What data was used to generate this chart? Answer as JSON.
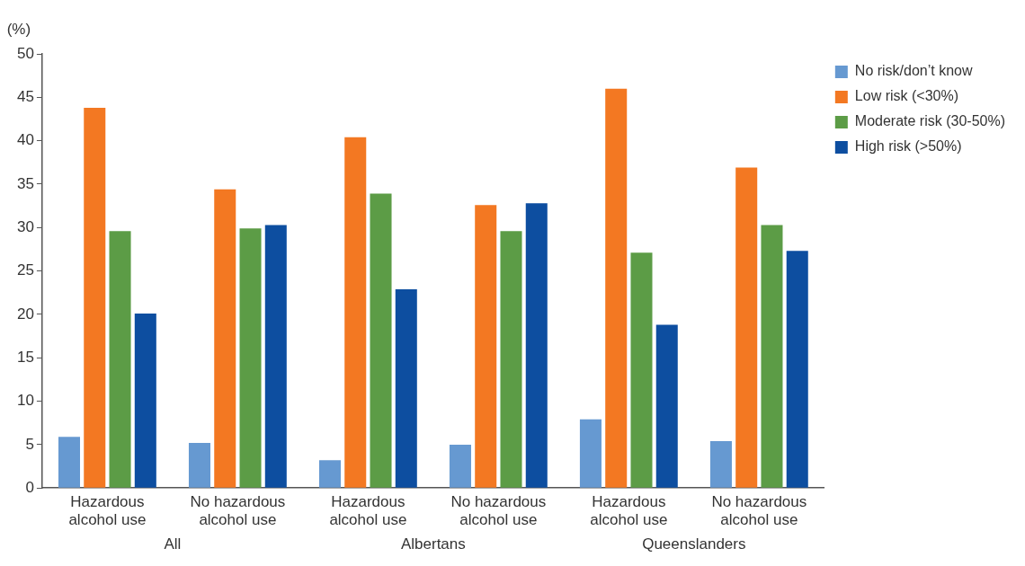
{
  "chart_data": {
    "type": "bar",
    "ylabel": "(%)",
    "categories": [
      "Hazardous alcohol use",
      "No hazardous alcohol use",
      "Hazardous alcohol use",
      "No hazardous alcohol use",
      "Hazardous alcohol use",
      "No hazardous alcohol use"
    ],
    "series": [
      {
        "name": "No risk/don’t know",
        "color": "#6699d1",
        "values": [
          5.9,
          5.2,
          3.2,
          5.0,
          7.9,
          5.4
        ]
      },
      {
        "name": "Low risk (<30%)",
        "color": "#f37822",
        "values": [
          43.8,
          34.4,
          40.4,
          32.6,
          46.0,
          36.9
        ]
      },
      {
        "name": "Moderate risk (30-50%)",
        "color": "#5c9c46",
        "values": [
          29.6,
          29.9,
          33.9,
          29.6,
          27.1,
          30.3
        ]
      },
      {
        "name": "High risk (>50%)",
        "color": "#0d4ea0",
        "values": [
          20.1,
          30.3,
          22.9,
          32.8,
          18.8,
          27.3
        ]
      }
    ],
    "annotations": [
      "All",
      "Albertans",
      "Queenslanders"
    ],
    "ylim": [
      0,
      50
    ],
    "yticks": [
      0,
      5,
      10,
      15,
      20,
      25,
      30,
      35,
      40,
      45,
      50
    ],
    "grid": false,
    "legend": "top right"
  }
}
